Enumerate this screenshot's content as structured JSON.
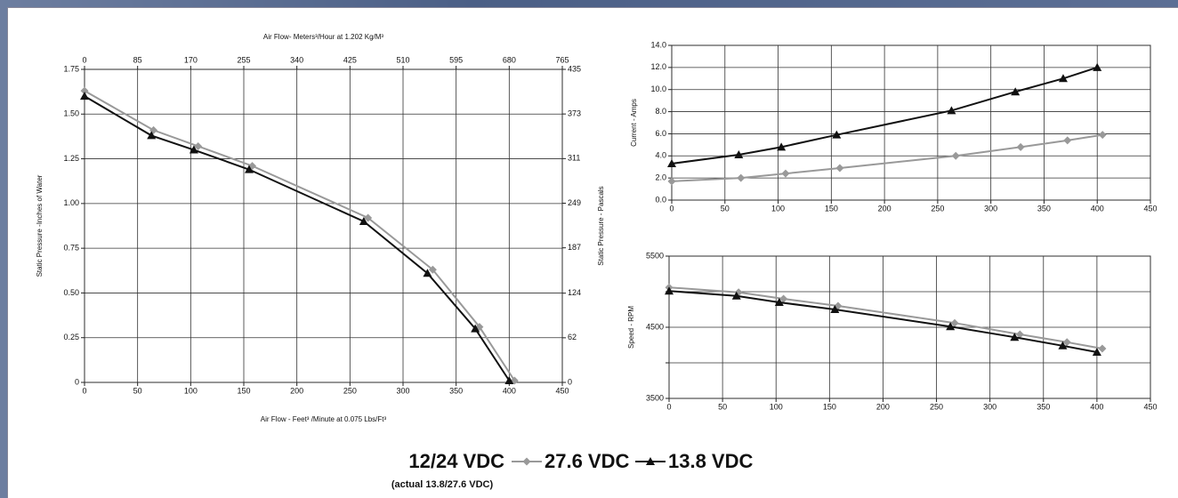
{
  "chart_data": [
    {
      "type": "line",
      "x2label": "Air Flow- Meters³/Hour at 1.202 Kg/M³",
      "xlabel": "Air Flow - Feet³ /Minute at 0.075 Lbs/Ft³",
      "ylabel": "Static Pressure -Inches of Water",
      "y2label": "Static Pressure - Pascals",
      "grid": true,
      "xlim": [
        0,
        450
      ],
      "xticks": [
        0,
        50,
        100,
        150,
        200,
        250,
        300,
        350,
        400,
        450
      ],
      "x2lim": [
        0,
        765
      ],
      "x2ticks": [
        0,
        85,
        170,
        255,
        340,
        425,
        510,
        595,
        680,
        765
      ],
      "ylim": [
        0,
        1.75
      ],
      "yticks": [
        0,
        0.25,
        {
          "value": 0.5,
          "label": "0.50"
        },
        0.75,
        {
          "value": 1,
          "label": "1.00"
        },
        1.25,
        {
          "value": 1.5,
          "label": "1.50"
        },
        1.75
      ],
      "y2lim": [
        0,
        435
      ],
      "y2ticks": [
        0,
        62,
        124,
        187,
        249,
        311,
        373,
        435
      ],
      "series": [
        {
          "name": "27.6 VDC",
          "color": "#999999",
          "marker": "diamond",
          "x": [
            0,
            65,
            107,
            158,
            267,
            328,
            372,
            405
          ],
          "values": [
            1.63,
            1.41,
            1.32,
            1.21,
            0.92,
            0.63,
            0.31,
            0.01
          ]
        },
        {
          "name": "13.8 VDC",
          "color": "#111111",
          "marker": "triangle",
          "x": [
            0,
            63,
            103,
            155,
            263,
            323,
            368,
            400
          ],
          "values": [
            1.6,
            1.38,
            1.3,
            1.19,
            0.9,
            0.61,
            0.3,
            0.01
          ]
        }
      ]
    },
    {
      "type": "line",
      "ylabel": "Current - Amps",
      "grid": true,
      "xlim": [
        0,
        450
      ],
      "xticks": [
        0,
        50,
        100,
        150,
        200,
        250,
        300,
        350,
        400,
        450
      ],
      "ylim": [
        0,
        14
      ],
      "yticks": [
        {
          "value": 0,
          "label": "0.0"
        },
        {
          "value": 2,
          "label": "2.0"
        },
        {
          "value": 4,
          "label": "4.0"
        },
        {
          "value": 6,
          "label": "6.0"
        },
        {
          "value": 8,
          "label": "8.0"
        },
        {
          "value": 10,
          "label": "10.0"
        },
        {
          "value": 12,
          "label": "12.0"
        },
        {
          "value": 14,
          "label": "14.0"
        }
      ],
      "series": [
        {
          "color": "#999999",
          "marker": "diamond",
          "x": [
            0,
            65,
            107,
            158,
            267,
            328,
            372,
            405
          ],
          "values": [
            1.7,
            2.0,
            2.4,
            2.9,
            4.0,
            4.8,
            5.4,
            5.9
          ]
        },
        {
          "color": "#111111",
          "marker": "triangle",
          "x": [
            0,
            63,
            103,
            155,
            263,
            323,
            368,
            400
          ],
          "values": [
            3.3,
            4.1,
            4.8,
            5.9,
            8.1,
            9.8,
            11.0,
            12.0
          ]
        }
      ]
    },
    {
      "type": "line",
      "ylabel": "Speed - RPM",
      "grid": true,
      "xlim": [
        0,
        450
      ],
      "xticks": [
        0,
        50,
        100,
        150,
        200,
        250,
        300,
        350,
        400,
        450
      ],
      "ylim": [
        3500,
        5500
      ],
      "yticks": [
        3500,
        4500,
        5500
      ],
      "ygrid": [
        4000,
        5000
      ],
      "series": [
        {
          "color": "#999999",
          "marker": "diamond",
          "x": [
            0,
            65,
            107,
            158,
            267,
            328,
            372,
            405
          ],
          "values": [
            5060,
            4990,
            4900,
            4800,
            4560,
            4400,
            4290,
            4200
          ]
        },
        {
          "color": "#111111",
          "marker": "triangle",
          "x": [
            0,
            63,
            103,
            155,
            263,
            323,
            368,
            400
          ],
          "values": [
            5010,
            4940,
            4850,
            4750,
            4510,
            4360,
            4240,
            4150
          ]
        }
      ]
    }
  ],
  "legend": {
    "title": "12/24 VDC",
    "subtitle": "(actual 13.8/27.6 VDC)"
  }
}
